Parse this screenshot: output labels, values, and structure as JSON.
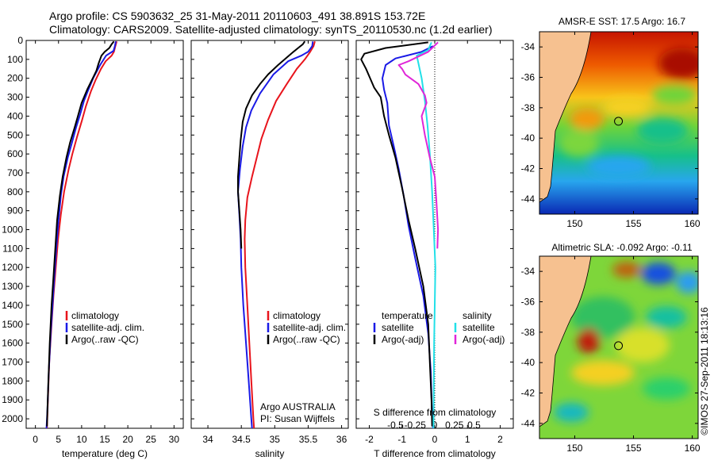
{
  "header": {
    "line1": "Argo profile: CS 5903632_25 31-May-2011 20110603_491 38.891S 153.72E",
    "line2": "Climatology: CARS2009. Satellite-adjusted climatology: synTS_20110530.nc (1.2d earlier)"
  },
  "colors": {
    "climatology": "#e8141c",
    "satellite": "#1a1ae6",
    "argo": "#000000",
    "sat_salinity": "#22e0e8",
    "argo_salinity": "#e026d8",
    "land": "#f6c190"
  },
  "depth_axis": {
    "ylim": [
      0,
      2050
    ],
    "ticks": [
      0,
      100,
      200,
      300,
      400,
      500,
      600,
      700,
      800,
      900,
      1000,
      1100,
      1200,
      1300,
      1400,
      1500,
      1600,
      1700,
      1800,
      1900,
      2000
    ]
  },
  "chart_data": [
    {
      "id": "temperature",
      "type": "line",
      "xlabel": "temperature (deg C)",
      "xlim": [
        -2,
        32
      ],
      "xticks": [
        0,
        5,
        10,
        15,
        20,
        25,
        30
      ],
      "xticklabels": [
        "0",
        "5",
        "10",
        "15",
        "20",
        "25",
        "30"
      ],
      "legend": {
        "position": "middle-center",
        "entries": [
          "climatology",
          "satellite-adj. clim.",
          "Argo(..raw -QC)"
        ]
      },
      "series": [
        {
          "name": "climatology",
          "color": "#e8141c",
          "points": [
            [
              17.6,
              5
            ],
            [
              17.3,
              30
            ],
            [
              17.0,
              60
            ],
            [
              16.5,
              80
            ],
            [
              15.2,
              110
            ],
            [
              14.2,
              150
            ],
            [
              13.0,
              210
            ],
            [
              12.0,
              270
            ],
            [
              10.9,
              350
            ],
            [
              10.1,
              420
            ],
            [
              9.0,
              510
            ],
            [
              8.0,
              600
            ],
            [
              7.2,
              680
            ],
            [
              6.2,
              800
            ],
            [
              5.5,
              920
            ],
            [
              4.9,
              1050
            ],
            [
              4.4,
              1200
            ],
            [
              3.9,
              1350
            ],
            [
              3.5,
              1500
            ],
            [
              3.0,
              1700
            ],
            [
              2.7,
              1900
            ],
            [
              2.5,
              2050
            ]
          ]
        },
        {
          "name": "satellite-adj. clim.",
          "color": "#1a1ae6",
          "points": [
            [
              17.4,
              5
            ],
            [
              17.2,
              30
            ],
            [
              16.9,
              55
            ],
            [
              15.3,
              80
            ],
            [
              14.0,
              130
            ],
            [
              12.5,
              200
            ],
            [
              11.3,
              270
            ],
            [
              10.5,
              320
            ],
            [
              9.7,
              390
            ],
            [
              8.8,
              460
            ],
            [
              7.9,
              540
            ],
            [
              7.0,
              620
            ],
            [
              6.1,
              720
            ],
            [
              5.5,
              820
            ],
            [
              5.0,
              950
            ],
            [
              4.5,
              1100
            ],
            [
              4.1,
              1250
            ],
            [
              3.7,
              1400
            ],
            [
              3.3,
              1550
            ],
            [
              2.9,
              1750
            ],
            [
              2.6,
              1950
            ],
            [
              2.4,
              2050
            ]
          ]
        },
        {
          "name": "Argo(..raw -QC)",
          "color": "#000000",
          "points": [
            [
              17.0,
              5
            ],
            [
              16.5,
              20
            ],
            [
              16.0,
              40
            ],
            [
              15.0,
              60
            ],
            [
              14.3,
              80
            ],
            [
              13.7,
              120
            ],
            [
              13.2,
              160
            ],
            [
              12.4,
              200
            ],
            [
              11.2,
              260
            ],
            [
              10.0,
              330
            ],
            [
              9.2,
              400
            ],
            [
              8.5,
              460
            ],
            [
              7.5,
              540
            ],
            [
              6.7,
              620
            ],
            [
              5.9,
              720
            ],
            [
              5.3,
              820
            ],
            [
              4.7,
              950
            ],
            [
              4.3,
              1100
            ],
            [
              3.9,
              1250
            ],
            [
              3.5,
              1400
            ],
            [
              3.1,
              1600
            ],
            [
              2.8,
              1800
            ],
            [
              2.6,
              1950
            ],
            [
              2.5,
              2040
            ]
          ]
        }
      ]
    },
    {
      "id": "salinity",
      "type": "line",
      "xlabel": "salinity",
      "xlim": [
        33.75,
        36.1
      ],
      "xticks": [
        34,
        34.5,
        35,
        35.5,
        36
      ],
      "xticklabels": [
        "34",
        "34.5",
        "35",
        "35.5",
        "36"
      ],
      "legend": {
        "position": "middle-center",
        "entries": [
          "climatology",
          "satellite-adj. clim.",
          "Argo(..raw -QC)"
        ]
      },
      "annotations": [
        "Argo AUSTRALIA",
        "PI: Susan Wijffels"
      ],
      "series": [
        {
          "name": "climatology",
          "color": "#e8141c",
          "points": [
            [
              35.6,
              5
            ],
            [
              35.58,
              30
            ],
            [
              35.53,
              60
            ],
            [
              35.45,
              100
            ],
            [
              35.33,
              150
            ],
            [
              35.18,
              230
            ],
            [
              35.02,
              320
            ],
            [
              34.9,
              420
            ],
            [
              34.8,
              520
            ],
            [
              34.73,
              620
            ],
            [
              34.66,
              720
            ],
            [
              34.59,
              830
            ],
            [
              34.56,
              950
            ],
            [
              34.55,
              1050
            ],
            [
              34.56,
              1200
            ],
            [
              34.59,
              1400
            ],
            [
              34.62,
              1600
            ],
            [
              34.65,
              1800
            ],
            [
              34.68,
              2000
            ],
            [
              34.69,
              2050
            ]
          ]
        },
        {
          "name": "satellite-adj. clim.",
          "color": "#1a1ae6",
          "points": [
            [
              35.57,
              5
            ],
            [
              35.56,
              30
            ],
            [
              35.5,
              60
            ],
            [
              35.4,
              80
            ],
            [
              35.2,
              110
            ],
            [
              34.98,
              180
            ],
            [
              34.78,
              280
            ],
            [
              34.65,
              370
            ],
            [
              34.57,
              460
            ],
            [
              34.52,
              560
            ],
            [
              34.48,
              680
            ],
            [
              34.45,
              800
            ],
            [
              34.47,
              920
            ],
            [
              34.49,
              1050
            ],
            [
              34.5,
              1200
            ],
            [
              34.53,
              1400
            ],
            [
              34.57,
              1600
            ],
            [
              34.61,
              1800
            ],
            [
              34.65,
              2000
            ],
            [
              34.66,
              2050
            ]
          ]
        },
        {
          "name": "Argo(..raw -QC)",
          "color": "#000000",
          "points": [
            [
              35.45,
              5
            ],
            [
              35.42,
              20
            ],
            [
              35.35,
              40
            ],
            [
              35.28,
              60
            ],
            [
              35.18,
              90
            ],
            [
              35.05,
              130
            ],
            [
              34.9,
              180
            ],
            [
              34.78,
              230
            ],
            [
              34.66,
              290
            ],
            [
              34.57,
              360
            ],
            [
              34.52,
              430
            ],
            [
              34.49,
              530
            ],
            [
              34.47,
              620
            ],
            [
              34.45,
              720
            ],
            [
              34.45,
              800
            ],
            [
              34.47,
              900
            ],
            [
              34.49,
              1000
            ],
            [
              34.5,
              1100
            ]
          ]
        }
      ]
    },
    {
      "id": "differences",
      "type": "line",
      "xlabel": "T difference from climatology",
      "xlabel_top": "S difference from climatology",
      "xlim": [
        -2.4,
        2.4
      ],
      "xticks": [
        -2,
        -1,
        0,
        1,
        2
      ],
      "xticklabels": [
        "-2",
        "-1",
        "0",
        "1",
        "2"
      ],
      "sticks": [
        -1.2,
        -0.6,
        0.6,
        1.2
      ],
      "sticklabels": [
        "-0.5",
        "-0.25",
        "0.25",
        "0.5"
      ],
      "zero_line": "dotted",
      "legend": {
        "temperature_title": "temperature",
        "salinity_title": "salinity",
        "entries": [
          "satellite",
          "Argo(-adj)",
          "satellite",
          "Argo(-adj)"
        ]
      },
      "series": [
        {
          "name": "satellite",
          "group": "temperature",
          "color": "#1a1ae6",
          "points": [
            [
              -0.05,
              30
            ],
            [
              -0.4,
              60
            ],
            [
              -1.2,
              95
            ],
            [
              -1.5,
              130
            ],
            [
              -1.6,
              200
            ],
            [
              -1.55,
              260
            ],
            [
              -1.45,
              330
            ],
            [
              -1.4,
              450
            ],
            [
              -1.25,
              560
            ],
            [
              -1.1,
              680
            ],
            [
              -0.95,
              820
            ],
            [
              -0.8,
              980
            ],
            [
              -0.6,
              1150
            ],
            [
              -0.35,
              1350
            ],
            [
              -0.2,
              1550
            ],
            [
              -0.12,
              1750
            ],
            [
              -0.08,
              2000
            ],
            [
              -0.05,
              2050
            ]
          ]
        },
        {
          "name": "Argo(-adj)",
          "group": "temperature",
          "color": "#000000",
          "points": [
            [
              -0.2,
              10
            ],
            [
              -1.5,
              40
            ],
            [
              -2.15,
              70
            ],
            [
              -2.25,
              100
            ],
            [
              -2.1,
              150
            ],
            [
              -1.95,
              210
            ],
            [
              -1.85,
              250
            ],
            [
              -1.65,
              300
            ],
            [
              -1.55,
              400
            ],
            [
              -1.4,
              500
            ],
            [
              -1.2,
              620
            ],
            [
              -1.0,
              780
            ],
            [
              -0.8,
              950
            ],
            [
              -0.6,
              1100
            ],
            [
              -0.35,
              1300
            ],
            [
              -0.2,
              1500
            ],
            [
              -0.15,
              1700
            ],
            [
              -0.1,
              1900
            ],
            [
              -0.08,
              2040
            ]
          ]
        },
        {
          "name": "satellite",
          "group": "salinity",
          "color": "#22e0e8",
          "points": [
            [
              -0.1,
              10
            ],
            [
              -0.2,
              50
            ],
            [
              -0.55,
              80
            ],
            [
              -0.5,
              120
            ],
            [
              -0.4,
              200
            ],
            [
              -0.3,
              320
            ],
            [
              -0.22,
              450
            ],
            [
              -0.15,
              600
            ],
            [
              -0.08,
              800
            ],
            [
              -0.03,
              1000
            ],
            [
              0.02,
              1200
            ],
            [
              0.0,
              1400
            ],
            [
              -0.02,
              1600
            ],
            [
              -0.03,
              1800
            ],
            [
              -0.04,
              2000
            ],
            [
              -0.04,
              2050
            ]
          ]
        },
        {
          "name": "Argo(-adj)",
          "group": "salinity",
          "color": "#e026d8",
          "points": [
            [
              0.1,
              10
            ],
            [
              -0.2,
              60
            ],
            [
              -0.8,
              110
            ],
            [
              -1.1,
              130
            ],
            [
              -1.0,
              150
            ],
            [
              -0.9,
              180
            ],
            [
              -0.5,
              230
            ],
            [
              -0.3,
              290
            ],
            [
              -0.25,
              330
            ],
            [
              -0.4,
              400
            ],
            [
              -0.3,
              500
            ],
            [
              -0.15,
              620
            ],
            [
              0.0,
              720
            ],
            [
              0.05,
              850
            ],
            [
              0.1,
              1000
            ],
            [
              0.08,
              1100
            ]
          ]
        }
      ]
    },
    {
      "id": "sst_map",
      "type": "heatmap",
      "title": "AMSR-E SST: 17.5  Argo: 16.7",
      "xlim": [
        147,
        160.5
      ],
      "ylim": [
        -45,
        -33
      ],
      "xticks": [
        150,
        155,
        160
      ],
      "yticks": [
        -34,
        -36,
        -38,
        -40,
        -42,
        -44
      ],
      "marker": {
        "lon": 153.72,
        "lat": -38.891
      }
    },
    {
      "id": "sla_map",
      "type": "heatmap",
      "title": "Altimetric SLA: -0.092  Argo: -0.11",
      "xlim": [
        147,
        160.5
      ],
      "ylim": [
        -45,
        -33
      ],
      "xticks": [
        150,
        155,
        160
      ],
      "yticks": [
        -34,
        -36,
        -38,
        -40,
        -42,
        -44
      ],
      "marker": {
        "lon": 153.72,
        "lat": -38.891
      }
    }
  ],
  "stamp": "©IMOS 27-Sep-2011 18:13:16"
}
